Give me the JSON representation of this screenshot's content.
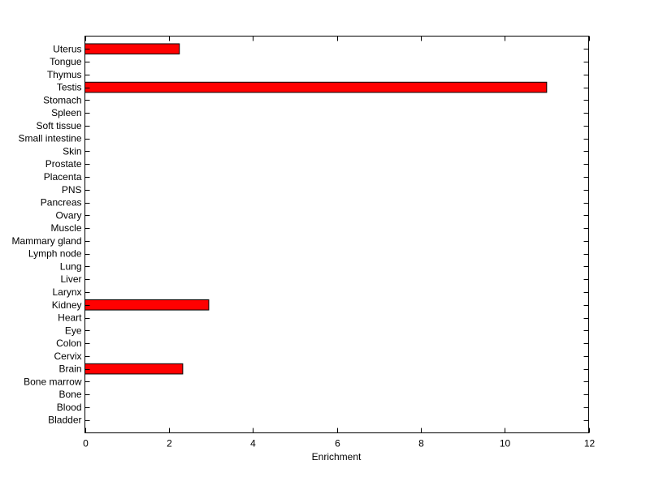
{
  "chart_data": {
    "type": "bar",
    "orientation": "horizontal",
    "categories": [
      "Bladder",
      "Blood",
      "Bone",
      "Bone marrow",
      "Brain",
      "Cervix",
      "Colon",
      "Eye",
      "Heart",
      "Kidney",
      "Larynx",
      "Liver",
      "Lung",
      "Lymph node",
      "Mammary gland",
      "Muscle",
      "Ovary",
      "Pancreas",
      "PNS",
      "Placenta",
      "Prostate",
      "Skin",
      "Small intestine",
      "Soft tissue",
      "Spleen",
      "Stomach",
      "Testis",
      "Thymus",
      "Tongue",
      "Uterus"
    ],
    "values": [
      0,
      0,
      0,
      0,
      2.33,
      0,
      0,
      0,
      0,
      2.95,
      0,
      0,
      0,
      0,
      0,
      0,
      0,
      0,
      0,
      0,
      0,
      0,
      0,
      0,
      0,
      0,
      11.0,
      0,
      0,
      2.25
    ],
    "title": "",
    "xlabel": "Enrichment",
    "ylabel": "",
    "xlim": [
      0,
      12
    ],
    "xticks": [
      0,
      2,
      4,
      6,
      8,
      10,
      12
    ],
    "grid": false,
    "bar_color": "#ff0000",
    "edge_color": "#000000"
  }
}
